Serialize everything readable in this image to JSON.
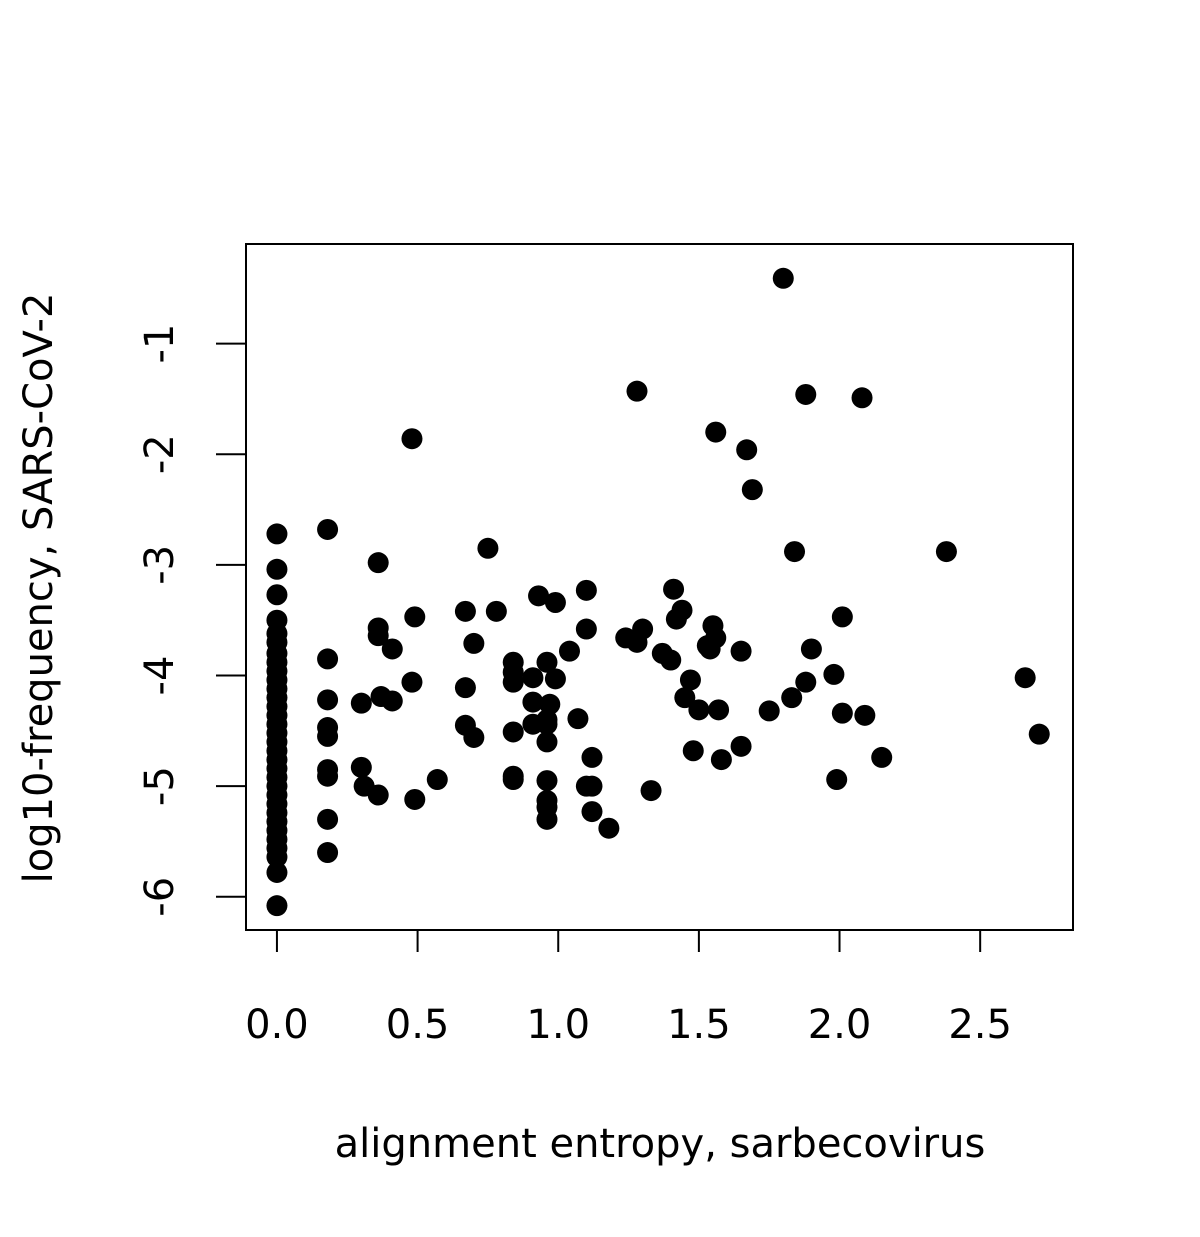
{
  "chart_data": {
    "type": "scatter",
    "title": "",
    "xlabel": "alignment entropy, sarbecovirus",
    "ylabel": "log10-frequency, SARS-CoV-2",
    "xlim": [
      -0.11,
      2.83
    ],
    "ylim": [
      -6.3,
      -0.1
    ],
    "x_ticks": [
      0.0,
      0.5,
      1.0,
      1.5,
      2.0,
      2.5
    ],
    "x_tick_labels": [
      "0.0",
      "0.5",
      "1.0",
      "1.5",
      "2.0",
      "2.5"
    ],
    "y_ticks": [
      -1,
      -2,
      -3,
      -4,
      -5,
      -6
    ],
    "y_tick_labels": [
      "-1",
      "-2",
      "-3",
      "-4",
      "-5",
      "-6"
    ],
    "grid": false,
    "legend": "none",
    "marker_color": "#000000",
    "points": [
      {
        "x": 0.0,
        "y": -2.72
      },
      {
        "x": 0.0,
        "y": -3.04
      },
      {
        "x": 0.0,
        "y": -3.27
      },
      {
        "x": 0.0,
        "y": -3.5
      },
      {
        "x": 0.0,
        "y": -3.62
      },
      {
        "x": 0.0,
        "y": -3.7
      },
      {
        "x": 0.0,
        "y": -3.8
      },
      {
        "x": 0.0,
        "y": -3.88
      },
      {
        "x": 0.0,
        "y": -3.96
      },
      {
        "x": 0.0,
        "y": -4.04
      },
      {
        "x": 0.0,
        "y": -4.12
      },
      {
        "x": 0.0,
        "y": -4.2
      },
      {
        "x": 0.0,
        "y": -4.28
      },
      {
        "x": 0.0,
        "y": -4.36
      },
      {
        "x": 0.0,
        "y": -4.44
      },
      {
        "x": 0.0,
        "y": -4.52
      },
      {
        "x": 0.0,
        "y": -4.6
      },
      {
        "x": 0.0,
        "y": -4.68
      },
      {
        "x": 0.0,
        "y": -4.76
      },
      {
        "x": 0.0,
        "y": -4.84
      },
      {
        "x": 0.0,
        "y": -4.92
      },
      {
        "x": 0.0,
        "y": -5.0
      },
      {
        "x": 0.0,
        "y": -5.08
      },
      {
        "x": 0.0,
        "y": -5.16
      },
      {
        "x": 0.0,
        "y": -5.24
      },
      {
        "x": 0.0,
        "y": -5.32
      },
      {
        "x": 0.0,
        "y": -5.4
      },
      {
        "x": 0.0,
        "y": -5.48
      },
      {
        "x": 0.0,
        "y": -5.56
      },
      {
        "x": 0.0,
        "y": -5.64
      },
      {
        "x": 0.0,
        "y": -5.78
      },
      {
        "x": 0.0,
        "y": -6.08
      },
      {
        "x": 0.18,
        "y": -2.68
      },
      {
        "x": 0.18,
        "y": -3.85
      },
      {
        "x": 0.18,
        "y": -4.22
      },
      {
        "x": 0.18,
        "y": -4.47
      },
      {
        "x": 0.18,
        "y": -4.55
      },
      {
        "x": 0.18,
        "y": -4.85
      },
      {
        "x": 0.18,
        "y": -4.91
      },
      {
        "x": 0.18,
        "y": -5.3
      },
      {
        "x": 0.18,
        "y": -5.6
      },
      {
        "x": 0.3,
        "y": -4.25
      },
      {
        "x": 0.3,
        "y": -4.83
      },
      {
        "x": 0.31,
        "y": -5.0
      },
      {
        "x": 0.36,
        "y": -2.98
      },
      {
        "x": 0.36,
        "y": -3.57
      },
      {
        "x": 0.36,
        "y": -3.64
      },
      {
        "x": 0.37,
        "y": -4.19
      },
      {
        "x": 0.36,
        "y": -5.08
      },
      {
        "x": 0.41,
        "y": -3.76
      },
      {
        "x": 0.41,
        "y": -4.23
      },
      {
        "x": 0.48,
        "y": -1.86
      },
      {
        "x": 0.48,
        "y": -4.06
      },
      {
        "x": 0.49,
        "y": -3.47
      },
      {
        "x": 0.49,
        "y": -5.12
      },
      {
        "x": 0.57,
        "y": -4.94
      },
      {
        "x": 0.67,
        "y": -3.42
      },
      {
        "x": 0.67,
        "y": -4.11
      },
      {
        "x": 0.67,
        "y": -4.45
      },
      {
        "x": 0.7,
        "y": -3.71
      },
      {
        "x": 0.7,
        "y": -4.56
      },
      {
        "x": 0.75,
        "y": -2.85
      },
      {
        "x": 0.78,
        "y": -3.42
      },
      {
        "x": 0.84,
        "y": -3.88
      },
      {
        "x": 0.84,
        "y": -3.97
      },
      {
        "x": 0.84,
        "y": -4.06
      },
      {
        "x": 0.84,
        "y": -4.51
      },
      {
        "x": 0.84,
        "y": -4.91
      },
      {
        "x": 0.84,
        "y": -4.94
      },
      {
        "x": 0.91,
        "y": -4.02
      },
      {
        "x": 0.91,
        "y": -4.24
      },
      {
        "x": 0.91,
        "y": -4.44
      },
      {
        "x": 0.93,
        "y": -3.28
      },
      {
        "x": 0.96,
        "y": -3.88
      },
      {
        "x": 0.96,
        "y": -4.4
      },
      {
        "x": 0.96,
        "y": -4.44
      },
      {
        "x": 0.96,
        "y": -4.6
      },
      {
        "x": 0.96,
        "y": -4.95
      },
      {
        "x": 0.96,
        "y": -5.13
      },
      {
        "x": 0.96,
        "y": -5.19
      },
      {
        "x": 0.96,
        "y": -5.3
      },
      {
        "x": 0.97,
        "y": -4.26
      },
      {
        "x": 0.99,
        "y": -3.34
      },
      {
        "x": 0.99,
        "y": -4.03
      },
      {
        "x": 1.04,
        "y": -3.78
      },
      {
        "x": 1.07,
        "y": -4.39
      },
      {
        "x": 1.1,
        "y": -3.23
      },
      {
        "x": 1.1,
        "y": -3.58
      },
      {
        "x": 1.1,
        "y": -5.0
      },
      {
        "x": 1.12,
        "y": -4.74
      },
      {
        "x": 1.12,
        "y": -5.0
      },
      {
        "x": 1.12,
        "y": -5.23
      },
      {
        "x": 1.18,
        "y": -5.38
      },
      {
        "x": 1.24,
        "y": -3.66
      },
      {
        "x": 1.28,
        "y": -1.43
      },
      {
        "x": 1.28,
        "y": -3.7
      },
      {
        "x": 1.3,
        "y": -3.58
      },
      {
        "x": 1.33,
        "y": -5.04
      },
      {
        "x": 1.37,
        "y": -3.8
      },
      {
        "x": 1.4,
        "y": -3.86
      },
      {
        "x": 1.41,
        "y": -3.22
      },
      {
        "x": 1.42,
        "y": -3.49
      },
      {
        "x": 1.44,
        "y": -3.41
      },
      {
        "x": 1.45,
        "y": -4.2
      },
      {
        "x": 1.47,
        "y": -4.04
      },
      {
        "x": 1.48,
        "y": -4.68
      },
      {
        "x": 1.5,
        "y": -4.31
      },
      {
        "x": 1.53,
        "y": -3.73
      },
      {
        "x": 1.54,
        "y": -3.76
      },
      {
        "x": 1.55,
        "y": -3.55
      },
      {
        "x": 1.56,
        "y": -3.66
      },
      {
        "x": 1.56,
        "y": -1.8
      },
      {
        "x": 1.57,
        "y": -4.31
      },
      {
        "x": 1.58,
        "y": -4.76
      },
      {
        "x": 1.65,
        "y": -3.78
      },
      {
        "x": 1.65,
        "y": -4.64
      },
      {
        "x": 1.67,
        "y": -1.96
      },
      {
        "x": 1.69,
        "y": -2.32
      },
      {
        "x": 1.75,
        "y": -4.32
      },
      {
        "x": 1.8,
        "y": -0.41
      },
      {
        "x": 1.83,
        "y": -4.2
      },
      {
        "x": 1.84,
        "y": -2.88
      },
      {
        "x": 1.88,
        "y": -4.06
      },
      {
        "x": 1.88,
        "y": -1.46
      },
      {
        "x": 1.9,
        "y": -3.76
      },
      {
        "x": 1.98,
        "y": -3.99
      },
      {
        "x": 1.99,
        "y": -4.94
      },
      {
        "x": 2.01,
        "y": -3.47
      },
      {
        "x": 2.01,
        "y": -4.34
      },
      {
        "x": 2.08,
        "y": -1.49
      },
      {
        "x": 2.09,
        "y": -4.36
      },
      {
        "x": 2.15,
        "y": -4.74
      },
      {
        "x": 2.38,
        "y": -2.88
      },
      {
        "x": 2.66,
        "y": -4.02
      },
      {
        "x": 2.71,
        "y": -4.53
      }
    ]
  }
}
